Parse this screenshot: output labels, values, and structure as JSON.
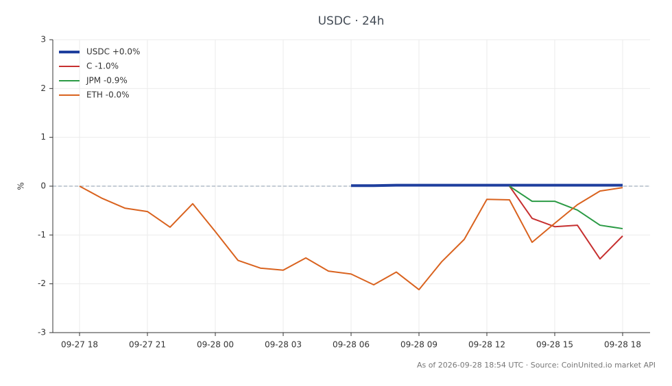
{
  "chart_data": {
    "type": "line",
    "title": "USDC · 24h",
    "y_label": "%",
    "footer": "As of 2026-09-28 18:54 UTC · Source: CoinUnited.io market API",
    "categories": [
      "09-27 18",
      null,
      null,
      "09-27 21",
      null,
      null,
      "09-28 00",
      null,
      null,
      "09-28 03",
      null,
      null,
      "09-28 06",
      null,
      null,
      "09-28 09",
      null,
      null,
      "09-28 12",
      null,
      null,
      "09-28 15",
      null,
      null,
      "09-28 18"
    ],
    "ylim": [
      -3,
      3
    ],
    "yticks": [
      -3,
      -2,
      -1,
      0,
      1,
      2,
      3
    ],
    "grid": true,
    "reference_line": 0,
    "legend": "upper-left",
    "series": [
      {
        "name": "USDC +0.0%",
        "color": "#1f3f9e",
        "width": 4,
        "values": [
          null,
          null,
          null,
          null,
          null,
          null,
          null,
          null,
          null,
          null,
          null,
          null,
          0.01,
          0.01,
          0.02,
          0.02,
          0.02,
          0.02,
          0.02,
          0.02,
          0.02,
          0.02,
          0.02,
          0.02,
          0.02
        ]
      },
      {
        "name": "C -1.0%",
        "color": "#c62f2f",
        "width": 2,
        "values": [
          null,
          null,
          null,
          null,
          null,
          null,
          null,
          null,
          null,
          null,
          null,
          null,
          null,
          null,
          null,
          null,
          null,
          null,
          null,
          0,
          -0.66,
          -0.83,
          -0.8,
          -1.49,
          -1.02
        ]
      },
      {
        "name": "JPM -0.9%",
        "color": "#2a9a44",
        "width": 2,
        "values": [
          null,
          null,
          null,
          null,
          null,
          null,
          null,
          null,
          null,
          null,
          null,
          null,
          null,
          null,
          null,
          null,
          null,
          null,
          null,
          0,
          -0.31,
          -0.31,
          -0.49,
          -0.8,
          -0.87
        ]
      },
      {
        "name": "ETH -0.0%",
        "color": "#d9621e",
        "width": 2,
        "values": [
          0,
          -0.25,
          -0.45,
          -0.52,
          -0.84,
          -0.36,
          -0.93,
          -1.52,
          -1.68,
          -1.72,
          -1.47,
          -1.74,
          -1.8,
          -2.02,
          -1.76,
          -2.12,
          -1.55,
          -1.09,
          -0.27,
          -0.28,
          -1.15,
          -0.76,
          -0.38,
          -0.1,
          -0.03
        ]
      }
    ]
  }
}
